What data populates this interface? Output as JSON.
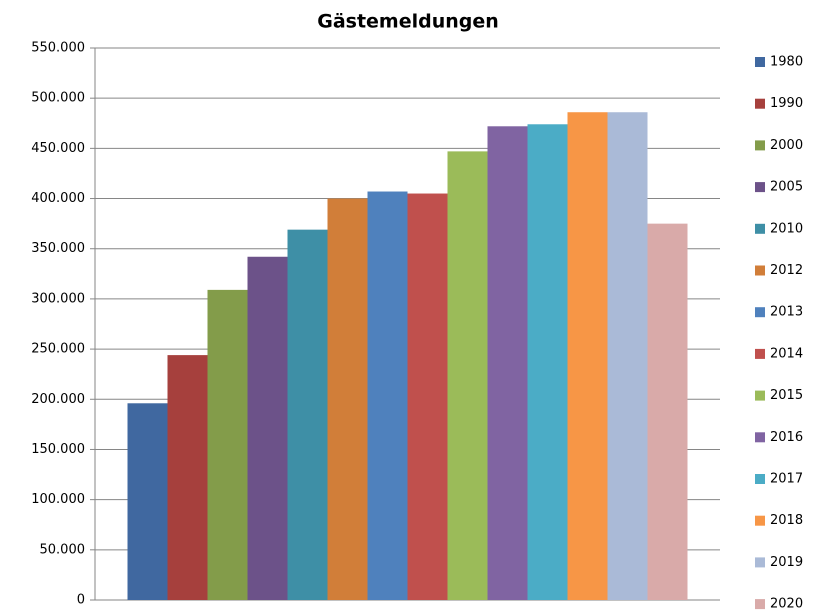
{
  "chart_data": {
    "type": "bar",
    "title": "Gästemeldungen",
    "categories": [
      null
    ],
    "series": [
      {
        "name": "1980",
        "color": "#4068a0",
        "values": [
          196000
        ]
      },
      {
        "name": "1990",
        "color": "#a6403d",
        "values": [
          244000
        ]
      },
      {
        "name": "2000",
        "color": "#839c4a",
        "values": [
          309000
        ]
      },
      {
        "name": "2005",
        "color": "#6c5289",
        "values": [
          342000
        ]
      },
      {
        "name": "2010",
        "color": "#3e8fa6",
        "values": [
          369000
        ]
      },
      {
        "name": "2012",
        "color": "#d17e39",
        "values": [
          400000
        ]
      },
      {
        "name": "2013",
        "color": "#4f81bd",
        "values": [
          407000
        ]
      },
      {
        "name": "2014",
        "color": "#c0504d",
        "values": [
          405000
        ]
      },
      {
        "name": "2015",
        "color": "#9bbb59",
        "values": [
          447000
        ]
      },
      {
        "name": "2016",
        "color": "#8064a2",
        "values": [
          472000
        ]
      },
      {
        "name": "2017",
        "color": "#4bacc6",
        "values": [
          474000
        ]
      },
      {
        "name": "2018",
        "color": "#f79646",
        "values": [
          486000
        ]
      },
      {
        "name": "2019",
        "color": "#aabad7",
        "values": [
          486000
        ]
      },
      {
        "name": "2020",
        "color": "#d9aaa9",
        "values": [
          375000
        ]
      }
    ],
    "ylim": [
      0,
      550000
    ],
    "yticks": [
      0,
      {
        "value": 50000,
        "label": "50.000"
      },
      {
        "value": 100000,
        "label": "100.000"
      },
      {
        "value": 150000,
        "label": "150.000"
      },
      {
        "value": 200000,
        "label": "200.000"
      },
      {
        "value": 250000,
        "label": "250.000"
      },
      {
        "value": 300000,
        "label": "300.000"
      },
      {
        "value": 350000,
        "label": "350.000"
      },
      {
        "value": 400000,
        "label": "400.000"
      },
      {
        "value": 450000,
        "label": "450.000"
      },
      {
        "value": 500000,
        "label": "500.000"
      },
      {
        "value": 550000,
        "label": "550.000"
      }
    ],
    "grid": true,
    "legend": "right"
  }
}
